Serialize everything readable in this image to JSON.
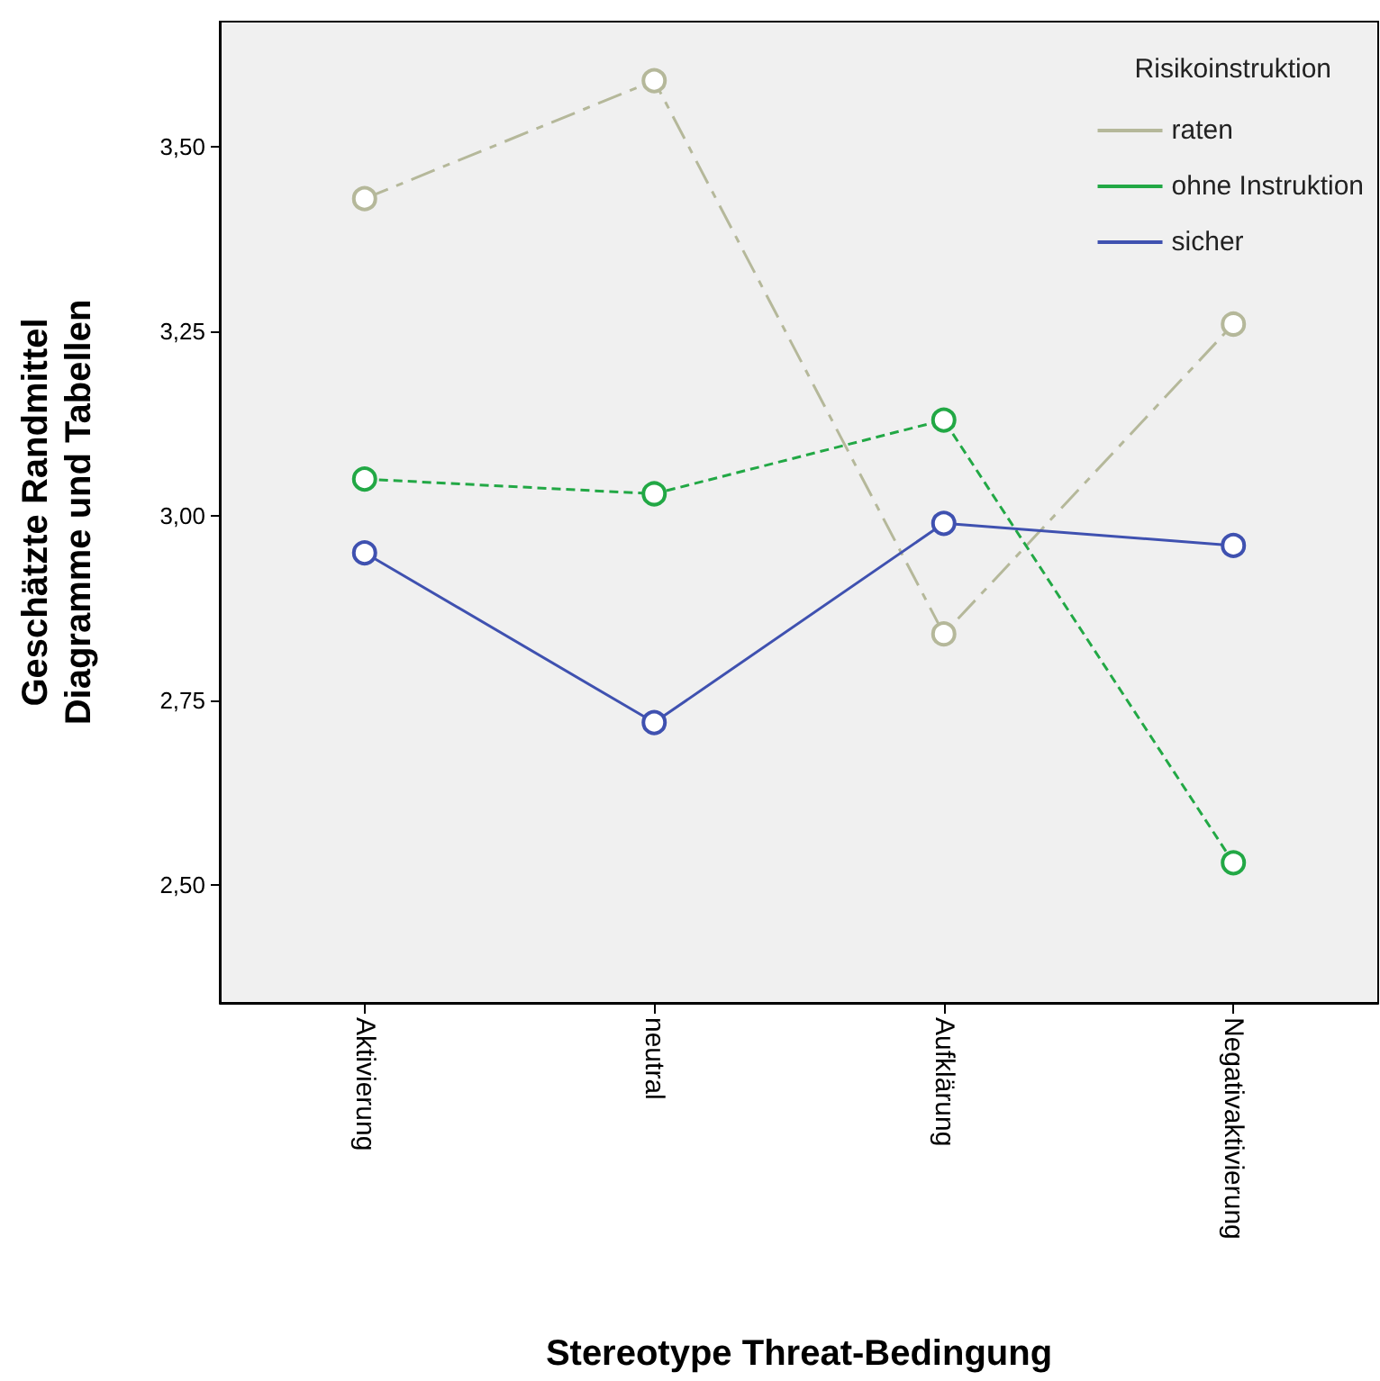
{
  "chart_data": {
    "type": "line",
    "xlabel": "Stereotype Threat-Bedingung",
    "ylabel": "Geschätzte Randmittel\nDiagramme und Tabellen",
    "legend_title": "Risikoinstruktion",
    "categories": [
      "Aktivierung",
      "neutral",
      "Aufklärung",
      "Negativaktivierung"
    ],
    "series": [
      {
        "name": "raten",
        "color": "#b5b89a",
        "line_style": "dashed",
        "values": [
          3.43,
          3.59,
          2.84,
          3.26
        ]
      },
      {
        "name": "ohne Instruktion",
        "color": "#22a845",
        "line_style": "dotted",
        "values": [
          3.05,
          3.03,
          3.13,
          2.53
        ]
      },
      {
        "name": "sicher",
        "color": "#3f51b0",
        "line_style": "solid",
        "values": [
          2.95,
          2.72,
          2.99,
          2.96
        ]
      }
    ],
    "ylim": [
      2.34,
      3.67
    ],
    "yticks": [
      {
        "value": 2.5,
        "label": "2,50"
      },
      {
        "value": 2.75,
        "label": "2,75"
      },
      {
        "value": 3,
        "label": "3,00"
      },
      {
        "value": 3.25,
        "label": "3,25"
      },
      {
        "value": 3.5,
        "label": "3,50"
      }
    ],
    "marker": "circle",
    "grid": false,
    "legend": "top right"
  }
}
